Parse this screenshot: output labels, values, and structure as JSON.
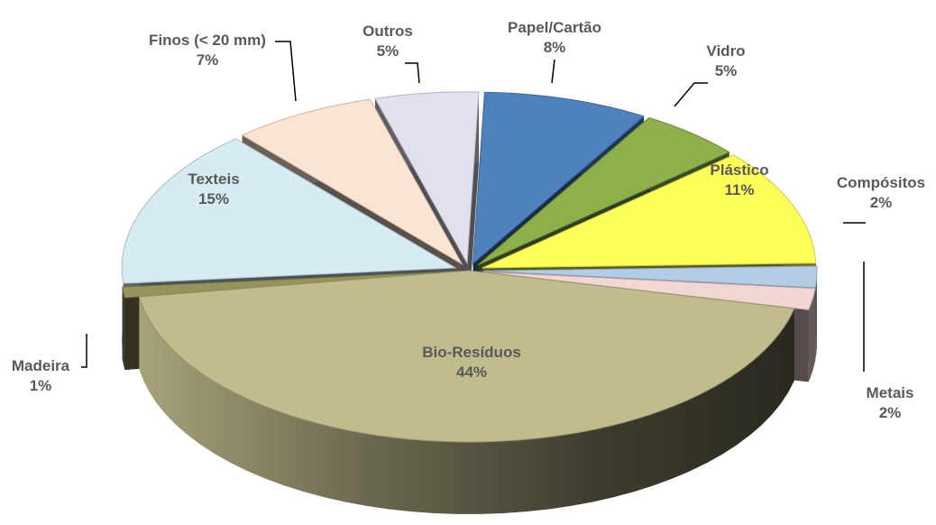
{
  "chart_data": {
    "type": "pie",
    "style": "3d-exploded",
    "legend": "none",
    "slices": [
      {
        "name": "Papel/Cartão",
        "percent_label": "8%",
        "value": 8,
        "color": "#4f81bd"
      },
      {
        "name": "Vidro",
        "percent_label": "5%",
        "value": 5,
        "color": "#8db04c"
      },
      {
        "name": "Plástico",
        "percent_label": "11%",
        "value": 11,
        "color": "#ffff5a"
      },
      {
        "name": "Compósitos",
        "percent_label": "2%",
        "value": 2,
        "color": "#b3cde6"
      },
      {
        "name": "Metais",
        "percent_label": "2%",
        "value": 2,
        "color": "#f2d6d3"
      },
      {
        "name": "Bio-Resíduos",
        "percent_label": "44%",
        "value": 44,
        "color": "#c1bc8d"
      },
      {
        "name": "Madeira",
        "percent_label": "1%",
        "value": 1,
        "color": "#97935b"
      },
      {
        "name": "Texteis",
        "percent_label": "15%",
        "value": 15,
        "color": "#d7ebf2"
      },
      {
        "name": "Finos (< 20 mm)",
        "percent_label": "7%",
        "value": 7,
        "color": "#fce4d2"
      },
      {
        "name": "Outros",
        "percent_label": "5%",
        "value": 5,
        "color": "#e4dfec"
      }
    ]
  }
}
